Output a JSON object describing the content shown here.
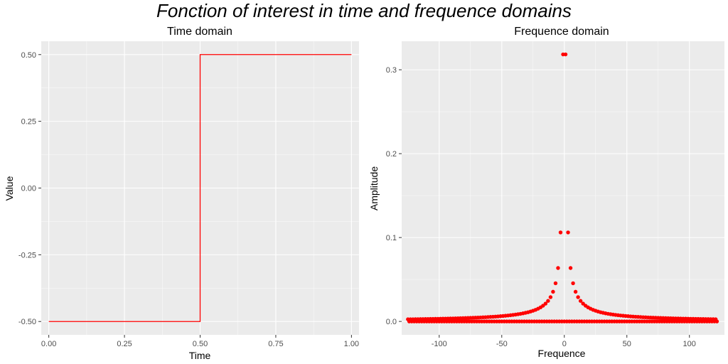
{
  "figure": {
    "title": "Fonction of interest in time and frequence domains"
  },
  "colors": {
    "series": "#ff0000",
    "panel_background": "#ebebeb",
    "grid": "#ffffff"
  },
  "chart_data": [
    {
      "type": "line",
      "title": "Time domain",
      "xlabel": "Time",
      "ylabel": "Value",
      "xlim": [
        -0.025,
        1.025
      ],
      "ylim": [
        -0.55,
        0.55
      ],
      "x_ticks": [
        0.0,
        0.25,
        0.5,
        0.75,
        1.0
      ],
      "x_tick_labels": [
        "0.00",
        "0.25",
        "0.50",
        "0.75",
        "1.00"
      ],
      "y_ticks": [
        -0.5,
        -0.25,
        0.0,
        0.25,
        0.5
      ],
      "y_tick_labels": [
        "-0.50",
        "-0.25",
        "0.00",
        "0.25",
        "0.50"
      ],
      "grid": true,
      "series": [
        {
          "color": "#ff0000",
          "x": [
            0.0,
            0.5,
            0.5,
            1.0
          ],
          "y": [
            -0.5,
            -0.5,
            0.5,
            0.5
          ]
        }
      ]
    },
    {
      "type": "scatter",
      "title": "Frequence domain",
      "xlabel": "Frequence",
      "ylabel": "Amplitude",
      "xlim": [
        -130,
        128
      ],
      "ylim": [
        -0.016,
        0.334
      ],
      "x_ticks": [
        -100,
        -50,
        0,
        50,
        100
      ],
      "x_tick_labels": [
        "-100",
        "-50",
        "0",
        "50",
        "100"
      ],
      "y_ticks": [
        0.0,
        0.1,
        0.2,
        0.3
      ],
      "y_tick_labels": [
        "0.0",
        "0.1",
        "0.2",
        "0.3"
      ],
      "grid": true,
      "series": [
        {
          "color": "#ff0000",
          "x_range": [
            -125,
            122
          ],
          "x_step": 1,
          "description": "Amplitude 0.318/|n| for odd n, 0 for even n (square-wave spectrum)",
          "odd_amplitude_numerator": 0.3183,
          "even_amplitude": 0.0
        }
      ]
    }
  ]
}
